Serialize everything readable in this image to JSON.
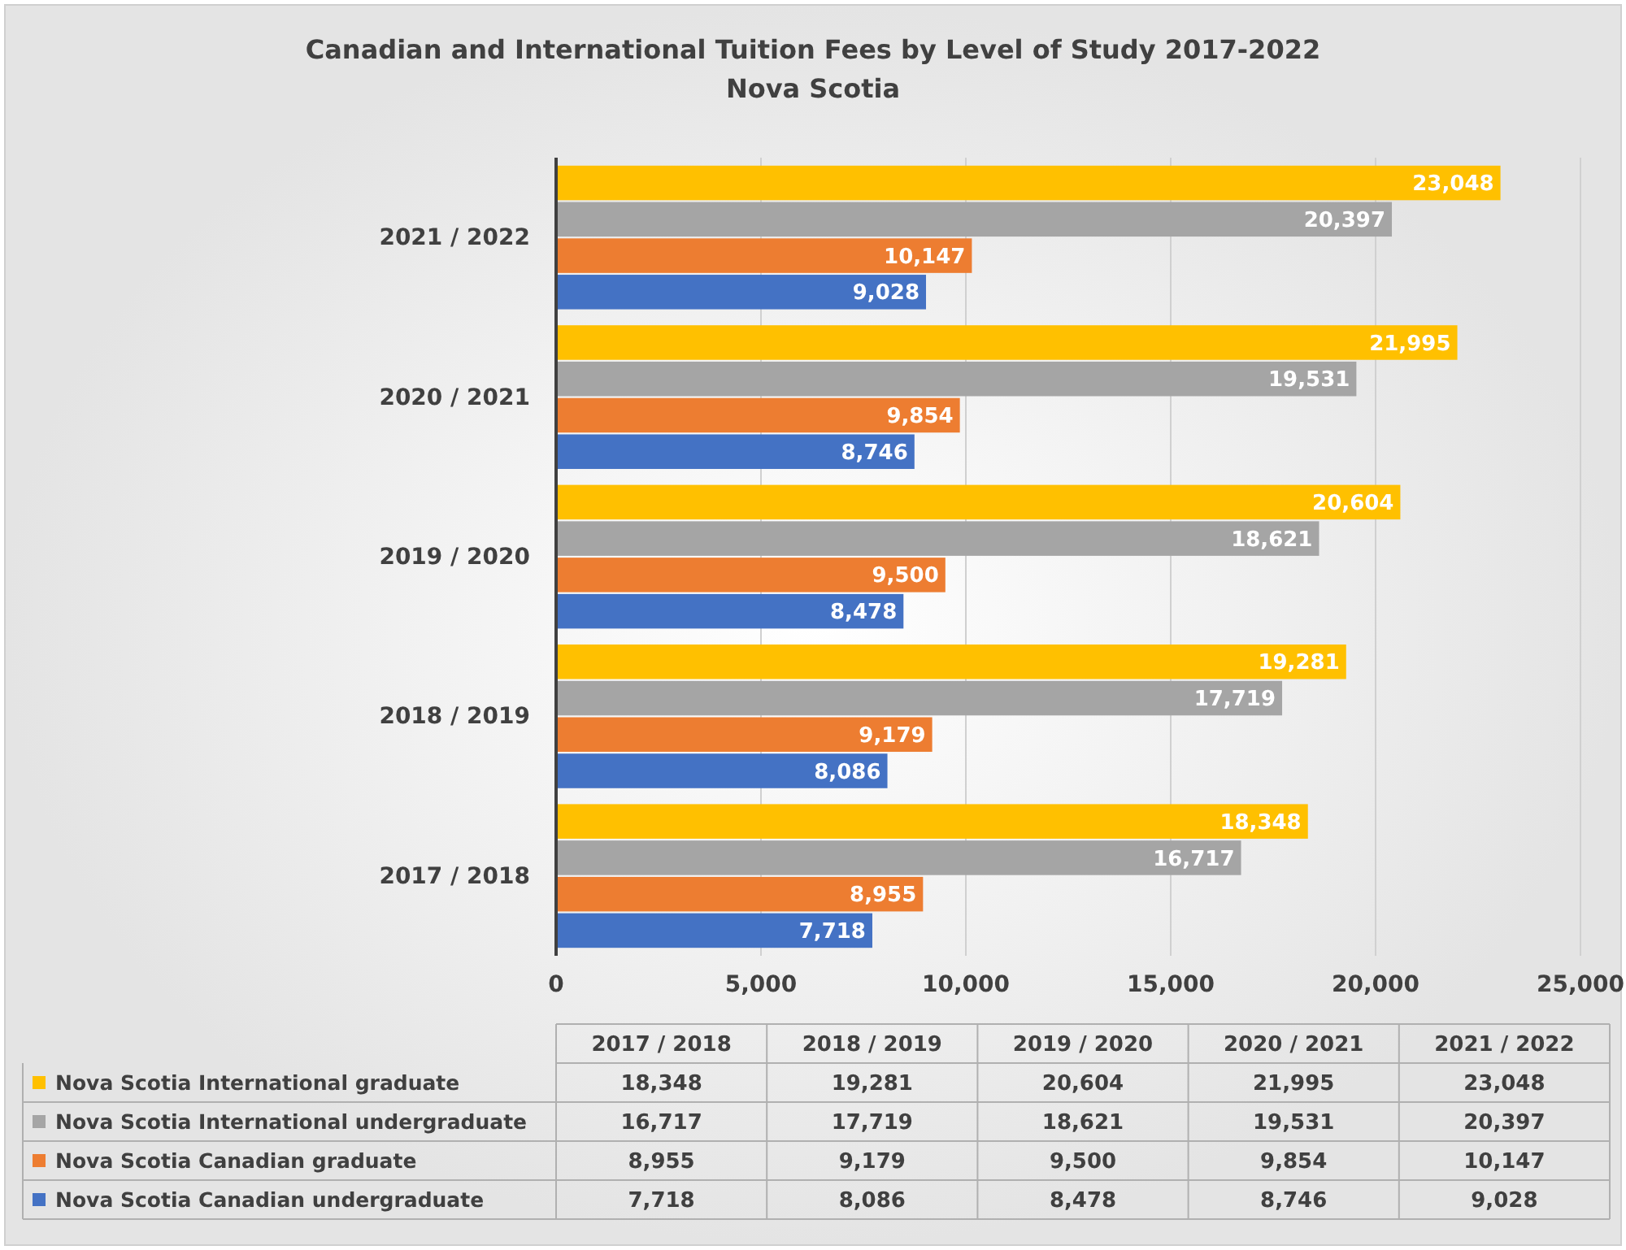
{
  "chart_data": {
    "type": "bar",
    "orientation": "horizontal",
    "title": "Canadian and International Tuition Fees by Level of Study 2017-2022",
    "subtitle": "Nova Scotia",
    "categories": [
      "2021 / 2022",
      "2020 / 2021",
      "2019 / 2020",
      "2018 / 2019",
      "2017 / 2018"
    ],
    "series": [
      {
        "name": "Nova Scotia International graduate",
        "color": "#ffc000",
        "values": [
          23048,
          21995,
          20604,
          19281,
          18348
        ],
        "value_labels": [
          "23,048",
          "21,995",
          "20,604",
          "19,281",
          "18,348"
        ]
      },
      {
        "name": "Nova Scotia International undergraduate",
        "color": "#a5a5a5",
        "values": [
          20397,
          19531,
          18621,
          17719,
          16717
        ],
        "value_labels": [
          "20,397",
          "19,531",
          "18,621",
          "17,719",
          "16,717"
        ]
      },
      {
        "name": "Nova Scotia Canadian graduate",
        "color": "#ed7d31",
        "values": [
          10147,
          9854,
          9500,
          9179,
          8955
        ],
        "value_labels": [
          "10,147",
          "9,854",
          "9,500",
          "9,179",
          "8,955"
        ]
      },
      {
        "name": "Nova Scotia Canadian undergraduate",
        "color": "#4472c4",
        "values": [
          9028,
          8746,
          8478,
          8086,
          7718
        ],
        "value_labels": [
          "9,028",
          "8,746",
          "8,478",
          "8,086",
          "7,718"
        ]
      }
    ],
    "xlim": [
      0,
      25000
    ],
    "xticks": [
      {
        "value": 0,
        "label": "0"
      },
      {
        "value": 5000,
        "label": "5,000"
      },
      {
        "value": 10000,
        "label": "10,000"
      },
      {
        "value": 15000,
        "label": "15,000"
      },
      {
        "value": 20000,
        "label": "20,000"
      },
      {
        "value": 25000,
        "label": "25,000"
      }
    ],
    "grid": "x",
    "legend": "bottom"
  }
}
